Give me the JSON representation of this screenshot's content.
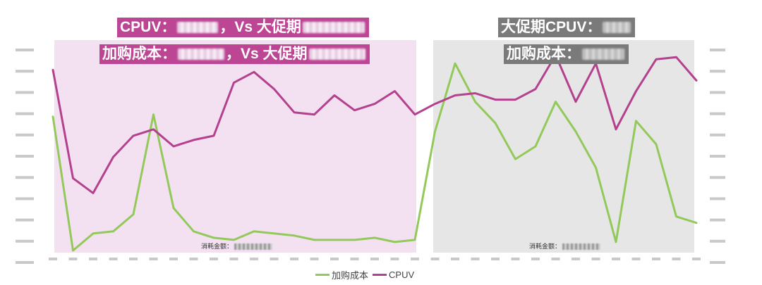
{
  "callouts": {
    "left_line1": {
      "prefix": "CPUV：",
      "mid": "，Vs 大促期",
      "suffix": ""
    },
    "left_line2": {
      "prefix": "加购成本：",
      "mid": "，Vs 大促期",
      "suffix": ""
    },
    "right_line1": {
      "prefix": "大促期CPUV："
    },
    "right_line2": {
      "prefix": "加购成本："
    }
  },
  "spend_labels": {
    "left": "消耗金额：",
    "right": "消耗金额："
  },
  "legend": {
    "cost": "加购成本",
    "cpuv": "CPUV"
  },
  "colors": {
    "cost": "#93c95a",
    "cpuv": "#b3418e",
    "left_region": "#f3e1f1",
    "right_region": "#e6e6e6",
    "callout_pink": "#bc4594",
    "callout_gray": "#7a7a7a"
  },
  "chart_data": {
    "type": "line",
    "x_count": 33,
    "left_axis": {
      "min": 0,
      "max": 10
    },
    "right_axis": {
      "min": 0,
      "max": 10
    },
    "grid": false,
    "legend_position": "bottom",
    "series": [
      {
        "name": "加购成本",
        "axis": "left",
        "values": [
          6.4,
          0.1,
          0.9,
          1.0,
          1.8,
          6.5,
          2.1,
          1.0,
          0.7,
          0.6,
          1.0,
          0.9,
          0.8,
          0.6,
          0.6,
          0.6,
          0.7,
          0.5,
          0.6,
          5.7,
          8.9,
          7.1,
          6.1,
          4.4,
          5.0,
          7.1,
          5.7,
          4.0,
          0.5,
          6.2,
          5.1,
          1.7,
          1.4
        ]
      },
      {
        "name": "CPUV",
        "axis": "right",
        "values": [
          8.6,
          3.5,
          2.8,
          4.5,
          5.5,
          5.8,
          5.0,
          5.3,
          5.5,
          8.0,
          8.5,
          7.7,
          6.6,
          6.5,
          7.4,
          6.7,
          7.0,
          7.6,
          6.5,
          7.0,
          7.4,
          7.5,
          7.2,
          7.2,
          7.7,
          9.3,
          7.1,
          8.9,
          5.8,
          7.6,
          9.1,
          9.2,
          8.1
        ]
      }
    ]
  }
}
